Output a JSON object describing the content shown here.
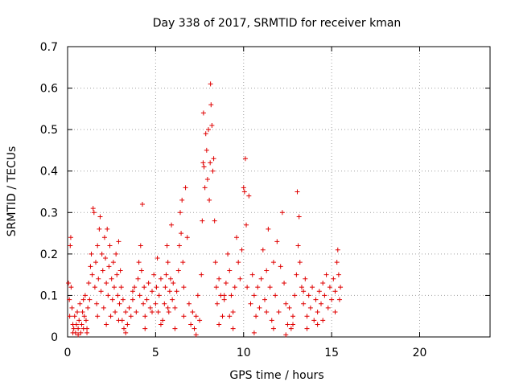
{
  "chart_data": {
    "type": "scatter",
    "title": "Day 338 of 2017, SRMTID for receiver kman",
    "xlabel": "GPS time / hours",
    "ylabel": "SRMTID / TECUs",
    "xlim": [
      0,
      24
    ],
    "ylim": [
      0,
      0.7
    ],
    "xticks": [
      "0",
      "5",
      "10",
      "15",
      "20"
    ],
    "yticks": [
      "0",
      "0.1",
      "0.2",
      "0.3",
      "0.4",
      "0.5",
      "0.6",
      "0.7"
    ],
    "grid": true,
    "marker": "plus",
    "color": "#e00000",
    "series": [
      {
        "name": "SRMTID",
        "points": [
          [
            0.05,
            0.13
          ],
          [
            0.1,
            0.09
          ],
          [
            0.12,
            0.05
          ],
          [
            0.15,
            0.22
          ],
          [
            0.18,
            0.24
          ],
          [
            0.2,
            0.12
          ],
          [
            0.25,
            0.07
          ],
          [
            0.3,
            0.03
          ],
          [
            0.35,
            0.02
          ],
          [
            0.4,
            0.05
          ],
          [
            0.45,
            0.01
          ],
          [
            0.5,
            0.03
          ],
          [
            0.55,
            0.06
          ],
          [
            0.6,
            0.02
          ],
          [
            0.65,
            0.04
          ],
          [
            0.7,
            0.08
          ],
          [
            0.75,
            0.01
          ],
          [
            0.8,
            0.03
          ],
          [
            0.85,
            0.06
          ],
          [
            0.9,
            0.02
          ],
          [
            0.95,
            0.05
          ],
          [
            1.0,
            0.1
          ],
          [
            1.05,
            0.04
          ],
          [
            1.1,
            0.02
          ],
          [
            1.15,
            0.07
          ],
          [
            1.2,
            0.13
          ],
          [
            1.25,
            0.09
          ],
          [
            1.3,
            0.17
          ],
          [
            1.35,
            0.2
          ],
          [
            1.4,
            0.15
          ],
          [
            1.45,
            0.31
          ],
          [
            1.5,
            0.3
          ],
          [
            1.55,
            0.12
          ],
          [
            1.6,
            0.18
          ],
          [
            1.65,
            0.08
          ],
          [
            1.7,
            0.22
          ],
          [
            1.75,
            0.14
          ],
          [
            1.8,
            0.26
          ],
          [
            1.85,
            0.29
          ],
          [
            1.9,
            0.11
          ],
          [
            1.95,
            0.2
          ],
          [
            2.0,
            0.16
          ],
          [
            2.05,
            0.07
          ],
          [
            2.1,
            0.24
          ],
          [
            2.15,
            0.19
          ],
          [
            2.2,
            0.13
          ],
          [
            2.25,
            0.26
          ],
          [
            2.3,
            0.1
          ],
          [
            2.35,
            0.17
          ],
          [
            2.4,
            0.22
          ],
          [
            2.45,
            0.05
          ],
          [
            2.5,
            0.14
          ],
          [
            2.55,
            0.09
          ],
          [
            2.6,
            0.18
          ],
          [
            2.65,
            0.12
          ],
          [
            2.7,
            0.06
          ],
          [
            2.75,
            0.2
          ],
          [
            2.8,
            0.15
          ],
          [
            2.85,
            0.1
          ],
          [
            2.9,
            0.23
          ],
          [
            2.95,
            0.08
          ],
          [
            3.0,
            0.16
          ],
          [
            3.05,
            0.12
          ],
          [
            3.1,
            0.04
          ],
          [
            3.15,
            0.09
          ],
          [
            3.2,
            0.02
          ],
          [
            3.3,
            0.06
          ],
          [
            3.4,
            0.03
          ],
          [
            3.5,
            0.07
          ],
          [
            3.6,
            0.05
          ],
          [
            3.7,
            0.09
          ],
          [
            3.8,
            0.12
          ],
          [
            3.9,
            0.06
          ],
          [
            4.0,
            0.14
          ],
          [
            4.05,
            0.18
          ],
          [
            4.1,
            0.1
          ],
          [
            4.15,
            0.22
          ],
          [
            4.2,
            0.16
          ],
          [
            4.25,
            0.32
          ],
          [
            4.3,
            0.08
          ],
          [
            4.35,
            0.12
          ],
          [
            4.4,
            0.05
          ],
          [
            4.5,
            0.09
          ],
          [
            4.6,
            0.13
          ],
          [
            4.7,
            0.07
          ],
          [
            4.8,
            0.11
          ],
          [
            4.9,
            0.15
          ],
          [
            5.0,
            0.08
          ],
          [
            5.05,
            0.12
          ],
          [
            5.1,
            0.19
          ],
          [
            5.15,
            0.06
          ],
          [
            5.2,
            0.1
          ],
          [
            5.3,
            0.14
          ],
          [
            5.4,
            0.04
          ],
          [
            5.5,
            0.08
          ],
          [
            5.55,
            0.12
          ],
          [
            5.6,
            0.15
          ],
          [
            5.65,
            0.22
          ],
          [
            5.7,
            0.18
          ],
          [
            5.75,
            0.06
          ],
          [
            5.8,
            0.11
          ],
          [
            5.85,
            0.14
          ],
          [
            5.9,
            0.27
          ],
          [
            5.95,
            0.09
          ],
          [
            6.0,
            0.13
          ],
          [
            6.1,
            0.07
          ],
          [
            6.2,
            0.11
          ],
          [
            6.3,
            0.16
          ],
          [
            6.35,
            0.22
          ],
          [
            6.4,
            0.3
          ],
          [
            6.45,
            0.25
          ],
          [
            6.5,
            0.33
          ],
          [
            6.55,
            0.18
          ],
          [
            6.6,
            0.12
          ],
          [
            6.7,
            0.36
          ],
          [
            6.8,
            0.24
          ],
          [
            6.9,
            0.08
          ],
          [
            7.0,
            0.03
          ],
          [
            7.1,
            0.06
          ],
          [
            7.2,
            0.02
          ],
          [
            7.3,
            0.05
          ],
          [
            7.4,
            0.1
          ],
          [
            7.5,
            0.04
          ],
          [
            7.6,
            0.15
          ],
          [
            7.65,
            0.28
          ],
          [
            7.7,
            0.42
          ],
          [
            7.72,
            0.54
          ],
          [
            7.75,
            0.41
          ],
          [
            7.8,
            0.36
          ],
          [
            7.85,
            0.49
          ],
          [
            7.9,
            0.45
          ],
          [
            7.95,
            0.38
          ],
          [
            8.0,
            0.5
          ],
          [
            8.05,
            0.33
          ],
          [
            8.1,
            0.42
          ],
          [
            8.12,
            0.61
          ],
          [
            8.15,
            0.56
          ],
          [
            8.2,
            0.51
          ],
          [
            8.25,
            0.4
          ],
          [
            8.3,
            0.43
          ],
          [
            8.35,
            0.28
          ],
          [
            8.4,
            0.18
          ],
          [
            8.45,
            0.12
          ],
          [
            8.5,
            0.08
          ],
          [
            8.6,
            0.14
          ],
          [
            8.7,
            0.1
          ],
          [
            8.8,
            0.05
          ],
          [
            8.9,
            0.09
          ],
          [
            9.0,
            0.13
          ],
          [
            9.1,
            0.2
          ],
          [
            9.2,
            0.16
          ],
          [
            9.3,
            0.1
          ],
          [
            9.4,
            0.06
          ],
          [
            9.5,
            0.12
          ],
          [
            9.6,
            0.24
          ],
          [
            9.7,
            0.18
          ],
          [
            9.8,
            0.14
          ],
          [
            9.9,
            0.21
          ],
          [
            10.0,
            0.36
          ],
          [
            10.05,
            0.35
          ],
          [
            10.1,
            0.43
          ],
          [
            10.15,
            0.27
          ],
          [
            10.2,
            0.12
          ],
          [
            10.3,
            0.34
          ],
          [
            10.4,
            0.08
          ],
          [
            10.5,
            0.15
          ],
          [
            10.6,
            0.1
          ],
          [
            10.7,
            0.05
          ],
          [
            10.8,
            0.12
          ],
          [
            10.9,
            0.07
          ],
          [
            11.0,
            0.14
          ],
          [
            11.1,
            0.21
          ],
          [
            11.2,
            0.09
          ],
          [
            11.3,
            0.16
          ],
          [
            11.4,
            0.26
          ],
          [
            11.5,
            0.12
          ],
          [
            11.6,
            0.04
          ],
          [
            11.7,
            0.18
          ],
          [
            11.8,
            0.1
          ],
          [
            11.9,
            0.23
          ],
          [
            12.0,
            0.06
          ],
          [
            12.1,
            0.17
          ],
          [
            12.2,
            0.3
          ],
          [
            12.3,
            0.13
          ],
          [
            12.4,
            0.08
          ],
          [
            12.5,
            0.03
          ],
          [
            12.6,
            0.07
          ],
          [
            12.7,
            0.02
          ],
          [
            12.8,
            0.05
          ],
          [
            12.9,
            0.1
          ],
          [
            13.0,
            0.15
          ],
          [
            13.05,
            0.35
          ],
          [
            13.1,
            0.22
          ],
          [
            13.15,
            0.29
          ],
          [
            13.2,
            0.18
          ],
          [
            13.3,
            0.12
          ],
          [
            13.4,
            0.08
          ],
          [
            13.5,
            0.14
          ],
          [
            13.6,
            0.05
          ],
          [
            13.7,
            0.1
          ],
          [
            13.8,
            0.07
          ],
          [
            13.9,
            0.12
          ],
          [
            14.0,
            0.04
          ],
          [
            14.1,
            0.09
          ],
          [
            14.2,
            0.06
          ],
          [
            14.3,
            0.11
          ],
          [
            14.4,
            0.08
          ],
          [
            14.5,
            0.13
          ],
          [
            14.6,
            0.1
          ],
          [
            14.7,
            0.15
          ],
          [
            14.8,
            0.07
          ],
          [
            14.9,
            0.12
          ],
          [
            15.0,
            0.09
          ],
          [
            15.1,
            0.14
          ],
          [
            15.2,
            0.11
          ],
          [
            15.3,
            0.18
          ],
          [
            15.35,
            0.21
          ],
          [
            15.4,
            0.15
          ],
          [
            15.45,
            0.09
          ],
          [
            15.5,
            0.12
          ],
          [
            0.3,
            0.01
          ],
          [
            0.6,
            0.005
          ],
          [
            1.1,
            0.01
          ],
          [
            2.2,
            0.03
          ],
          [
            3.3,
            0.01
          ],
          [
            4.4,
            0.02
          ],
          [
            5.3,
            0.03
          ],
          [
            6.1,
            0.02
          ],
          [
            7.3,
            0.005
          ],
          [
            8.6,
            0.03
          ],
          [
            9.4,
            0.02
          ],
          [
            10.6,
            0.01
          ],
          [
            11.7,
            0.02
          ],
          [
            12.4,
            0.005
          ],
          [
            13.6,
            0.02
          ],
          [
            14.5,
            0.04
          ],
          [
            1.7,
            0.05
          ],
          [
            2.9,
            0.04
          ],
          [
            4.8,
            0.06
          ],
          [
            6.6,
            0.05
          ],
          [
            9.2,
            0.05
          ],
          [
            11.3,
            0.06
          ],
          [
            12.8,
            0.03
          ],
          [
            14.2,
            0.03
          ],
          [
            15.2,
            0.06
          ],
          [
            0.9,
            0.09
          ],
          [
            3.7,
            0.11
          ],
          [
            5.7,
            0.07
          ],
          [
            8.9,
            0.1
          ],
          [
            13.4,
            0.11
          ]
        ]
      }
    ]
  }
}
